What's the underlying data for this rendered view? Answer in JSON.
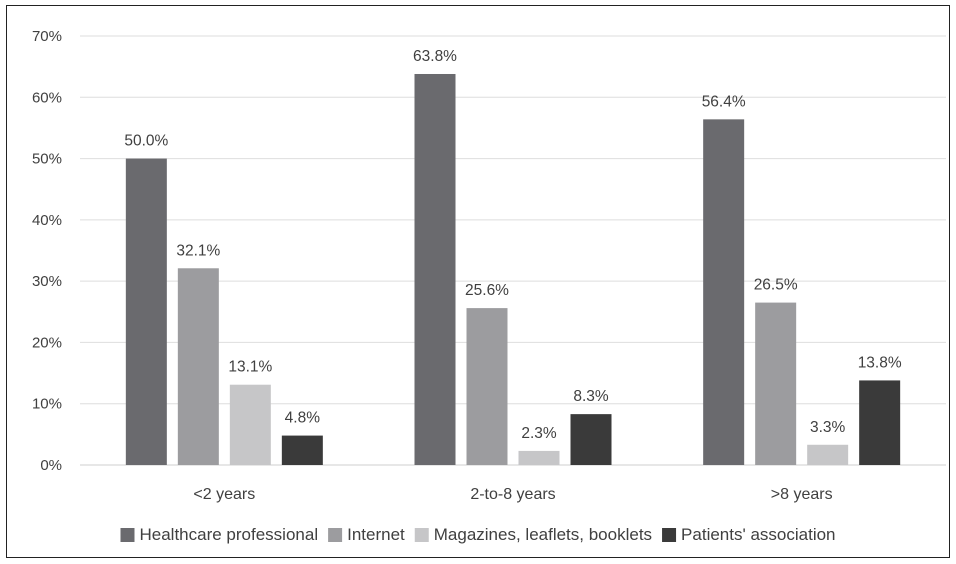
{
  "chart_data": {
    "type": "bar",
    "categories": [
      "<2 years",
      "2-to-8 years",
      ">8 years"
    ],
    "series": [
      {
        "name": "Healthcare professional",
        "values": [
          50.0,
          63.8,
          56.4
        ],
        "color": "#6a6a6e"
      },
      {
        "name": "Internet",
        "values": [
          32.1,
          25.6,
          26.5
        ],
        "color": "#9c9c9f"
      },
      {
        "name": "Magazines, leaflets, booklets",
        "values": [
          13.1,
          2.3,
          3.3
        ],
        "color": "#c6c6c8"
      },
      {
        "name": "Patients' association",
        "values": [
          4.8,
          8.3,
          13.8
        ],
        "color": "#3a3a3a"
      }
    ],
    "data_labels": [
      [
        "50.0%",
        "63.8%",
        "56.4%"
      ],
      [
        "32.1%",
        "25.6%",
        "26.5%"
      ],
      [
        "13.1%",
        "2.3%",
        "3.3%"
      ],
      [
        "4.8%",
        "8.3%",
        "13.8%"
      ]
    ],
    "y_ticks": [
      "0%",
      "10%",
      "20%",
      "30%",
      "40%",
      "50%",
      "60%",
      "70%"
    ],
    "ylim": [
      0,
      70
    ],
    "grid": true,
    "legend_position": "bottom",
    "title": "",
    "xlabel": "",
    "ylabel": ""
  }
}
